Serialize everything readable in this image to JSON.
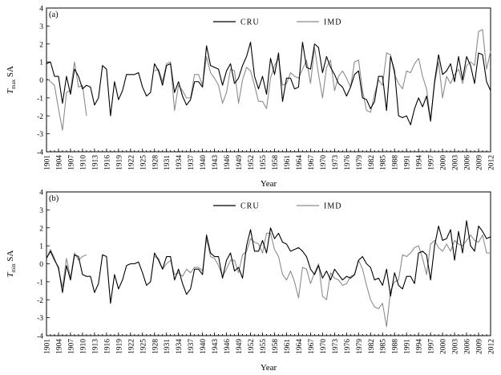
{
  "chart_data": [
    {
      "type": "line",
      "panel_label": "(a)",
      "ylabel_main": "T",
      "ylabel_sub": "max",
      "ylabel_suffix": " SA",
      "xlabel": "Year",
      "xlim": [
        1901,
        2012
      ],
      "ylim": [
        -4,
        4
      ],
      "yticks": [
        -4,
        -3,
        -2,
        -1,
        0,
        1,
        2,
        3,
        4
      ],
      "xticks": [
        1901,
        1904,
        1907,
        1910,
        1913,
        1916,
        1919,
        1922,
        1925,
        1928,
        1931,
        1934,
        1937,
        1940,
        1943,
        1946,
        1949,
        1952,
        1955,
        1958,
        1961,
        1964,
        1967,
        1970,
        1973,
        1976,
        1979,
        1982,
        1985,
        1988,
        1991,
        1994,
        1997,
        2000,
        2003,
        2006,
        2009,
        2012
      ],
      "legend_position": "top-center",
      "series": [
        {
          "name": "CRU",
          "color": "#000000",
          "x_start": 1901,
          "values": [
            0.9,
            1.0,
            0.2,
            0.2,
            -1.3,
            0.2,
            -0.8,
            0.6,
            0.2,
            -0.5,
            -0.3,
            -0.4,
            -1.4,
            -1.0,
            0.8,
            0.6,
            -2.0,
            -0.1,
            -1.1,
            -0.6,
            0.3,
            0.3,
            0.3,
            0.4,
            -0.4,
            -0.9,
            -0.7,
            0.9,
            0.5,
            -0.3,
            0.8,
            0.9,
            -0.7,
            -0.1,
            -0.9,
            -1.4,
            -1.1,
            -0.1,
            -0.1,
            -0.4,
            1.9,
            0.8,
            0.7,
            0.6,
            -0.3,
            0.5,
            0.9,
            -0.2,
            0.1,
            0.8,
            1.3,
            2.1,
            0.2,
            -0.5,
            0.2,
            -0.8,
            1.2,
            0.3,
            1.5,
            -1.2,
            0.1,
            0.1,
            -0.5,
            -0.4,
            2.1,
            0.7,
            0.6,
            2.0,
            1.8,
            0.4,
            1.3,
            0.7,
            0.3,
            -0.2,
            -0.4,
            -0.9,
            -0.4,
            0.3,
            0.5,
            -1.0,
            -1.1,
            -1.6,
            -1.2,
            0.2,
            0.2,
            -1.7,
            1.3,
            0.5,
            -2.0,
            -2.1,
            -2.0,
            -2.5,
            -1.6,
            -1.0,
            -1.5,
            -0.9,
            -2.3,
            -0.1,
            1.4,
            0.3,
            0.5,
            0.9,
            -0.1,
            1.3,
            0.0,
            1.3,
            0.8,
            -0.2,
            1.5,
            1.4,
            -0.1,
            -0.6
          ]
        },
        {
          "name": "IMD",
          "color": "#8c8c8c",
          "x_start": 1901,
          "values": [
            0.1,
            -0.1,
            -0.3,
            -1.6,
            -2.8,
            -0.7,
            -0.6,
            1.0,
            -0.4,
            -0.3,
            -2.0,
            null,
            null,
            null,
            null,
            null,
            null,
            null,
            null,
            null,
            null,
            null,
            null,
            null,
            null,
            null,
            null,
            0.5,
            0.6,
            -0.1,
            0.9,
            1.0,
            -1.7,
            -0.3,
            -0.6,
            -1.0,
            -1.0,
            0.3,
            0.3,
            -0.3,
            1.3,
            0.4,
            0.1,
            -0.3,
            -1.3,
            -0.7,
            0.6,
            0.5,
            -1.3,
            0.0,
            0.7,
            0.5,
            -0.3,
            -1.2,
            -1.2,
            -1.6,
            0.1,
            0.8,
            1.2,
            -0.3,
            -0.2,
            0.4,
            0.2,
            0.1,
            0.6,
            1.1,
            -0.2,
            1.8,
            0.3,
            -1.0,
            0.7,
            1.1,
            -0.6,
            0.2,
            0.5,
            0.1,
            -0.4,
            1.0,
            1.1,
            -0.6,
            -1.7,
            -1.8,
            -0.8,
            0.0,
            -0.3,
            1.5,
            1.4,
            0.3,
            -0.2,
            -0.5,
            0.5,
            0.4,
            0.9,
            1.2,
            0.2,
            -0.5,
            -2.2,
            -0.2,
            1.0,
            -1.0,
            0.2,
            -0.2,
            0.3,
            0.6,
            -0.2,
            0.8,
            1.0,
            0.8,
            2.7,
            2.8,
            0.6,
            1.6
          ]
        }
      ]
    },
    {
      "type": "line",
      "panel_label": "(b)",
      "ylabel_main": "T",
      "ylabel_sub": "min",
      "ylabel_suffix": " SA",
      "xlabel": "Year",
      "xlim": [
        1901,
        2012
      ],
      "ylim": [
        -4,
        4
      ],
      "yticks": [
        -4,
        -3,
        -2,
        -1,
        0,
        1,
        2,
        3,
        4
      ],
      "xticks": [
        1901,
        1904,
        1907,
        1910,
        1913,
        1916,
        1919,
        1922,
        1925,
        1928,
        1931,
        1934,
        1937,
        1940,
        1943,
        1946,
        1949,
        1952,
        1955,
        1958,
        1961,
        1964,
        1967,
        1970,
        1973,
        1976,
        1979,
        1982,
        1985,
        1988,
        1991,
        1994,
        1997,
        2000,
        2003,
        2006,
        2009,
        2012
      ],
      "legend_position": "top-center",
      "series": [
        {
          "name": "CRU",
          "color": "#000000",
          "x_start": 1901,
          "values": [
            0.3,
            0.7,
            0.2,
            -0.2,
            -1.6,
            -0.1,
            -0.9,
            0.5,
            0.4,
            -0.6,
            -0.7,
            -0.7,
            -1.6,
            -1.1,
            0.5,
            0.4,
            -2.2,
            -0.6,
            -1.4,
            -0.9,
            -0.1,
            0.0,
            0.0,
            0.1,
            -0.5,
            -1.2,
            -1.0,
            0.6,
            0.2,
            -0.3,
            0.4,
            0.4,
            -0.9,
            -0.3,
            -1.1,
            -1.7,
            -1.4,
            -0.3,
            -0.3,
            -0.6,
            1.6,
            0.6,
            0.4,
            0.4,
            -0.8,
            0.2,
            0.6,
            -0.4,
            -0.2,
            -0.8,
            1.0,
            1.9,
            0.7,
            0.7,
            1.3,
            0.6,
            2.0,
            1.4,
            1.7,
            1.2,
            1.1,
            0.7,
            0.8,
            0.9,
            0.7,
            0.4,
            -0.3,
            -0.6,
            -0.1,
            -0.8,
            -0.4,
            -0.9,
            -0.3,
            -0.6,
            -0.9,
            -0.7,
            -0.8,
            -0.6,
            0.2,
            0.4,
            0.0,
            -0.2,
            -0.9,
            -0.8,
            -1.2,
            -0.3,
            -1.8,
            -0.5,
            -1.2,
            -1.4,
            -0.7,
            -0.7,
            -1.1,
            0.6,
            0.7,
            0.5,
            -0.9,
            1.0,
            2.1,
            1.3,
            1.4,
            1.9,
            0.2,
            1.8,
            0.6,
            2.4,
            1.0,
            0.7,
            2.1,
            1.8,
            1.4,
            1.5
          ]
        },
        {
          "name": "IMD",
          "color": "#8c8c8c",
          "x_start": 1901,
          "values": [
            0.3,
            0.8,
            0.3,
            -0.3,
            -1.3,
            0.3,
            -0.8,
            0.6,
            0.2,
            0.4,
            0.5,
            null,
            null,
            null,
            null,
            null,
            null,
            null,
            null,
            null,
            null,
            null,
            null,
            null,
            null,
            null,
            null,
            0.4,
            0.3,
            -0.3,
            0.0,
            0.2,
            -0.6,
            -0.5,
            -0.7,
            -0.3,
            -0.5,
            -0.2,
            -0.2,
            -0.4,
            1.4,
            0.4,
            0.3,
            -0.1,
            -0.7,
            -0.3,
            0.2,
            0.2,
            -0.5,
            0.5,
            0.7,
            1.4,
            1.2,
            1.1,
            0.6,
            1.7,
            1.7,
            0.8,
            0.4,
            -0.6,
            -0.9,
            -0.4,
            -1.0,
            -1.9,
            -0.2,
            -0.3,
            -1.1,
            -0.5,
            0.0,
            -1.8,
            -2.0,
            -0.5,
            -0.8,
            -0.9,
            -1.2,
            -1.1,
            -0.7,
            -0.6,
            0.2,
            -0.3,
            -1.2,
            -2.0,
            -2.4,
            -2.5,
            -2.2,
            -3.5,
            -1.5,
            -1.0,
            -0.9,
            0.5,
            0.4,
            0.6,
            0.9,
            1.0,
            0.3,
            -0.6,
            1.1,
            1.3,
            0.9,
            0.7,
            1.1,
            0.7,
            1.3,
            1.1,
            1.0,
            1.3,
            1.6,
            1.3,
            1.2,
            1.6,
            0.6,
            0.6
          ]
        }
      ]
    }
  ]
}
